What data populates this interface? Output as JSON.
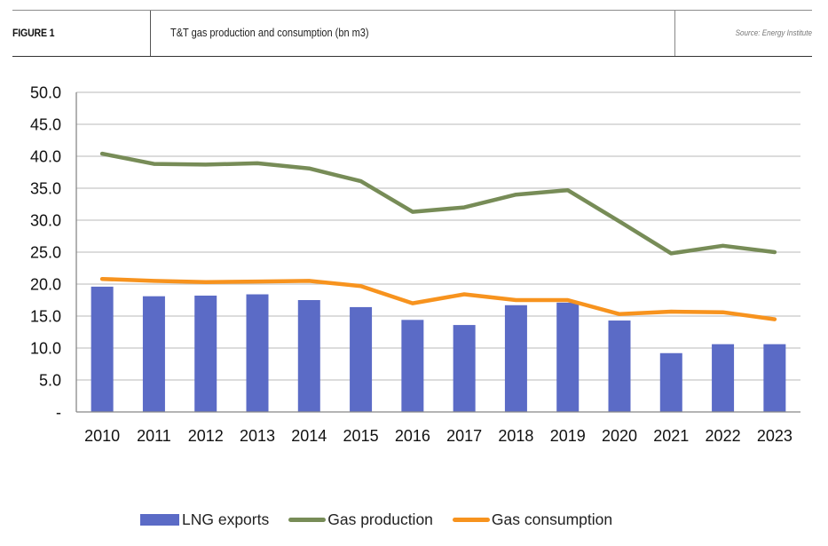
{
  "header": {
    "figure_label": "FIGURE 1",
    "title": "T&T gas production and consumption (bn m3)",
    "source": "Source: Energy Institute"
  },
  "colors": {
    "lng_exports": "#5B6BC6",
    "gas_production": "#778C57",
    "gas_consumption": "#F7931E",
    "gridline": "#c8c8c8",
    "axis": "#888888"
  },
  "chart_data": {
    "type": "bar",
    "title": "T&T gas production and consumption (bn m3)",
    "xlabel": "",
    "ylabel": "",
    "ylim": [
      0,
      50
    ],
    "y_ticks": [
      0,
      5,
      10,
      15,
      20,
      25,
      30,
      35,
      40,
      45,
      50
    ],
    "y_tick_labels": [
      "-",
      "5.0",
      "10.0",
      "15.0",
      "20.0",
      "25.0",
      "30.0",
      "35.0",
      "40.0",
      "45.0",
      "50.0"
    ],
    "grid": true,
    "legend_position": "bottom",
    "categories": [
      "2010",
      "2011",
      "2012",
      "2013",
      "2014",
      "2015",
      "2016",
      "2017",
      "2018",
      "2019",
      "2020",
      "2021",
      "2022",
      "2023"
    ],
    "series": [
      {
        "name": "LNG exports",
        "type": "bar",
        "values": [
          19.6,
          18.1,
          18.2,
          18.4,
          17.5,
          16.4,
          14.4,
          13.6,
          16.7,
          17.1,
          14.3,
          9.2,
          10.6,
          10.6
        ]
      },
      {
        "name": "Gas production",
        "type": "line",
        "values": [
          40.4,
          38.8,
          38.7,
          38.9,
          38.1,
          36.1,
          31.3,
          32.0,
          34.0,
          34.7,
          29.8,
          24.8,
          26.0,
          25.0
        ]
      },
      {
        "name": "Gas consumption",
        "type": "line",
        "values": [
          20.8,
          20.5,
          20.3,
          20.4,
          20.5,
          19.7,
          17.0,
          18.4,
          17.5,
          17.5,
          15.3,
          15.7,
          15.6,
          14.5
        ]
      }
    ]
  },
  "legend": {
    "items": [
      "LNG exports",
      "Gas production",
      "Gas consumption"
    ]
  }
}
